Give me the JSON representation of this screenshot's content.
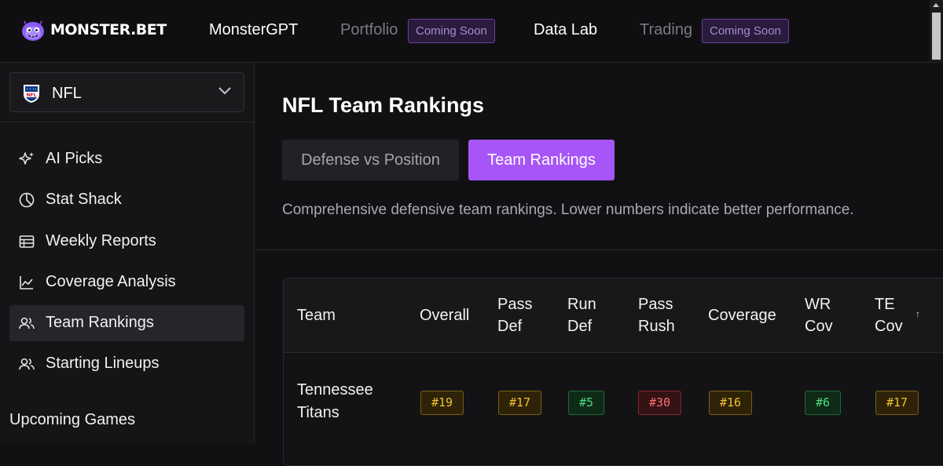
{
  "brand": {
    "name": "MONSTER.BET"
  },
  "nav": {
    "items": [
      {
        "label": "MonsterGPT",
        "badge": ""
      },
      {
        "label": "Portfolio",
        "badge": "Coming Soon"
      },
      {
        "label": "Data Lab",
        "badge": ""
      },
      {
        "label": "Trading",
        "badge": "Coming Soon"
      }
    ]
  },
  "sidebar": {
    "league": "NFL",
    "items": [
      {
        "label": "AI Picks",
        "icon": "sparkles-icon"
      },
      {
        "label": "Stat Shack",
        "icon": "pie-chart-icon"
      },
      {
        "label": "Weekly Reports",
        "icon": "table-icon"
      },
      {
        "label": "Coverage Analysis",
        "icon": "line-chart-icon"
      },
      {
        "label": "Team Rankings",
        "icon": "users-icon",
        "active": true
      },
      {
        "label": "Starting Lineups",
        "icon": "users-icon"
      }
    ],
    "section": "Upcoming Games"
  },
  "main": {
    "title": "NFL Team Rankings",
    "tabs": [
      {
        "label": "Defense vs Position",
        "active": false
      },
      {
        "label": "Team Rankings",
        "active": true
      }
    ],
    "description": "Comprehensive defensive team rankings. Lower numbers indicate better performance.",
    "table": {
      "columns": [
        {
          "line1": "Team",
          "line2": ""
        },
        {
          "line1": "Overall",
          "line2": ""
        },
        {
          "line1": "Pass",
          "line2": "Def"
        },
        {
          "line1": "Run",
          "line2": "Def"
        },
        {
          "line1": "Pass",
          "line2": "Rush"
        },
        {
          "line1": "Coverage",
          "line2": ""
        },
        {
          "line1": "WR",
          "line2": "Cov"
        },
        {
          "line1": "TE",
          "line2": "Cov"
        }
      ],
      "sort_indicator": "↑",
      "rows": [
        {
          "team_line1": "Tennessee",
          "team_line2": "Titans",
          "ranks": [
            {
              "value": "#19",
              "color": "#f2c12e"
            },
            {
              "value": "#17",
              "color": "#f2c12e"
            },
            {
              "value": "#5",
              "color": "#4ade80"
            },
            {
              "value": "#30",
              "color": "#f87171"
            },
            {
              "value": "#16",
              "color": "#f2c12e"
            },
            {
              "value": "#6",
              "color": "#4ade80"
            },
            {
              "value": "#17",
              "color": "#f2c12e"
            }
          ]
        }
      ]
    }
  },
  "colors": {
    "accent": "#a855f7",
    "badge": "#a78bd0"
  }
}
